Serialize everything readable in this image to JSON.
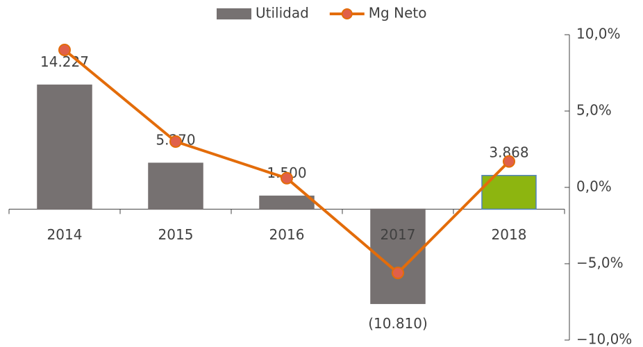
{
  "chart_data": {
    "type": "bar",
    "categories": [
      "2014",
      "2015",
      "2016",
      "2017",
      "2018"
    ],
    "series": [
      {
        "name": "Utilidad",
        "type": "bar",
        "color": "#767171",
        "colors": [
          "#767171",
          "#767171",
          "#767171",
          "#767171",
          "#8db510"
        ],
        "edge_colors": [
          "#767171",
          "#767171",
          "#767171",
          "#767171",
          "#4f81bd"
        ],
        "values": [
          14227,
          5270,
          1500,
          -10810,
          3868
        ],
        "value_labels": [
          "14.227",
          "5.270",
          "1.500",
          "(10.810)",
          "3.868"
        ]
      },
      {
        "name": "Mg Neto",
        "type": "line",
        "axis": "y2",
        "color": "#e36c0a",
        "marker_color": "#e0604a",
        "values": [
          9.0,
          3.0,
          0.6,
          -5.6,
          1.7
        ]
      }
    ],
    "ylim": [
      -15000,
      20000
    ],
    "y2lim": [
      -10,
      10
    ],
    "y2ticks": [
      {
        "value": 10,
        "label": "10,0%"
      },
      {
        "value": 5,
        "label": "5,0%"
      },
      {
        "value": 0,
        "label": "0,0%"
      },
      {
        "value": -5,
        "label": "−5,0%"
      },
      {
        "value": -10,
        "label": "−10,0%"
      }
    ],
    "legend": "top"
  }
}
